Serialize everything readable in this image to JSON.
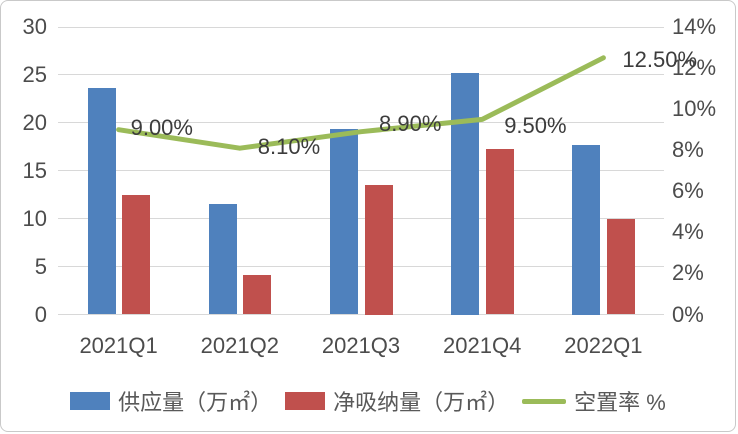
{
  "chart_data": {
    "type": "combo-bar-line",
    "title": "",
    "categories": [
      "2021Q1",
      "2021Q2",
      "2021Q3",
      "2021Q4",
      "2022Q1"
    ],
    "series": [
      {
        "name": "供应量（万㎡）",
        "type": "bar",
        "axis": "left",
        "color": "#4F81BD",
        "values": [
          23.6,
          11.5,
          19.4,
          25.2,
          17.7
        ]
      },
      {
        "name": "净吸纳量（万㎡）",
        "type": "bar",
        "axis": "left",
        "color": "#C0504D",
        "values": [
          12.5,
          4.1,
          13.5,
          17.3,
          10.0
        ]
      },
      {
        "name": "空置率 %",
        "type": "line",
        "axis": "right",
        "color": "#9BBB59",
        "values": [
          9.0,
          8.1,
          8.9,
          9.5,
          12.5
        ],
        "point_labels": [
          "9.00%",
          "8.10%",
          "8.90%",
          "9.50%",
          "12.50%"
        ]
      }
    ],
    "left_axis": {
      "min": 0,
      "max": 30,
      "ticks": [
        {
          "v": 30,
          "label": "30"
        },
        {
          "v": 25,
          "label": "25"
        },
        {
          "v": 20,
          "label": "20"
        },
        {
          "v": 15,
          "label": "15"
        },
        {
          "v": 10,
          "label": "10"
        },
        {
          "v": 5,
          "label": "5"
        },
        {
          "v": 0,
          "label": "0"
        }
      ]
    },
    "right_axis": {
      "min": 0,
      "max": 14,
      "ticks": [
        {
          "v": 14,
          "label": "14%"
        },
        {
          "v": 12,
          "label": "12%"
        },
        {
          "v": 10,
          "label": "10%"
        },
        {
          "v": 8,
          "label": "8%"
        },
        {
          "v": 6,
          "label": "6%"
        },
        {
          "v": 4,
          "label": "4%"
        },
        {
          "v": 2,
          "label": "2%"
        },
        {
          "v": 0,
          "label": "0%"
        }
      ]
    },
    "grid": true,
    "legend_position": "bottom",
    "colors": {
      "gridline": "#d8d8d8",
      "axis_text": "#4c4c4c",
      "data_label_text": "#3c3c3c",
      "legend_text": "#595959"
    }
  }
}
